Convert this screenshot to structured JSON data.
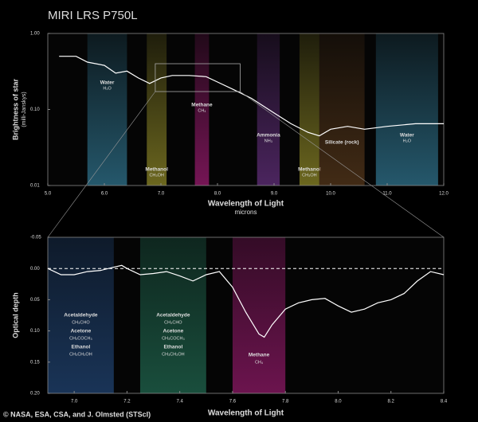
{
  "chart_data": [
    {
      "type": "line",
      "title": "MIRI LRS P750L",
      "xlabel": "Wavelength of Light",
      "xlabel_sub": "microns",
      "ylabel": "Brightness of star",
      "ylabel_sub": "(milli-Janskys)",
      "xlim": [
        5,
        12
      ],
      "xticks": [
        {
          "value": 5,
          "label": "5.0"
        },
        {
          "value": 6,
          "label": "6.0"
        },
        {
          "value": 7,
          "label": "7.0"
        },
        {
          "value": 8,
          "label": "8.0"
        },
        {
          "value": 9,
          "label": "9.0"
        },
        {
          "value": 10,
          "label": "10.0"
        },
        {
          "value": 11,
          "label": "11.0"
        },
        {
          "value": 12,
          "label": "12.0"
        }
      ],
      "ylim": [
        0.01,
        1
      ],
      "yscale": "log",
      "yticks": [
        0.01,
        {
          "value": 0.1,
          "label": "0.10"
        },
        {
          "value": 1,
          "label": "1.00"
        }
      ],
      "bands": [
        {
          "x0": 5.7,
          "x1": 6.4,
          "color": "#3a8fb0",
          "label_pos": "upper",
          "labels": [
            "Water",
            "H₂O"
          ]
        },
        {
          "x0": 6.75,
          "x1": 7.1,
          "color": "#b0a830",
          "label_pos": "bottom",
          "labels": [
            "Methanol",
            "CH₃OH"
          ]
        },
        {
          "x0": 7.6,
          "x1": 7.85,
          "color": "#c0208a",
          "label_pos": "center",
          "labels": [
            "Methane",
            "CH₄"
          ]
        },
        {
          "x0": 8.7,
          "x1": 9.1,
          "color": "#7a3a9a",
          "label_pos": "low",
          "labels": [
            "Ammonia",
            "NH₃"
          ]
        },
        {
          "x0": 9.45,
          "x1": 9.8,
          "color": "#b0a830",
          "label_pos": "bottom",
          "labels": [
            "Methanol",
            "CH₃OH"
          ]
        },
        {
          "x0": 9.8,
          "x1": 10.6,
          "color": "#6a4420",
          "label_pos": "lower",
          "labels": [
            "Silicate (rock)"
          ]
        },
        {
          "x0": 10.8,
          "x1": 11.9,
          "color": "#3a8fb0",
          "label_pos": "low",
          "labels": [
            "Water",
            "H₂O"
          ]
        }
      ],
      "series": [
        {
          "color": "#ffffff",
          "x": [
            5.2,
            5.5,
            5.7,
            6.0,
            6.2,
            6.4,
            6.6,
            6.8,
            7.0,
            7.2,
            7.5,
            7.8,
            8.0,
            8.3,
            8.6,
            9.0,
            9.3,
            9.6,
            9.8,
            10.0,
            10.3,
            10.6,
            11.0,
            11.5,
            12.0
          ],
          "values": [
            0.5,
            0.5,
            0.42,
            0.38,
            0.3,
            0.32,
            0.26,
            0.22,
            0.26,
            0.28,
            0.28,
            0.27,
            0.23,
            0.18,
            0.14,
            0.09,
            0.065,
            0.05,
            0.045,
            0.055,
            0.06,
            0.055,
            0.06,
            0.065,
            0.065
          ]
        }
      ]
    },
    {
      "type": "line",
      "xlabel": "Wavelength of Light",
      "ylabel": "Optical depth",
      "xlim": [
        6.9,
        8.4
      ],
      "xticks": [
        {
          "value": 7,
          "label": "7.0"
        },
        7.2,
        7.4,
        7.6,
        7.8,
        {
          "value": 8,
          "label": "8.0"
        },
        8.2,
        8.4
      ],
      "ylim": [
        -0.05,
        0.2
      ],
      "y_inverted": true,
      "yticks": [
        -0.05,
        {
          "value": 0,
          "label": "0.00"
        },
        0.05,
        {
          "value": 0.1,
          "label": "0.10"
        },
        0.15,
        {
          "value": 0.2,
          "label": "0.20"
        }
      ],
      "hline": 0,
      "bands": [
        {
          "x0": 6.9,
          "x1": 7.15,
          "color": "#2a5a9a",
          "label_pos": "center",
          "labels": [
            "Acetaldehyde",
            "CH₃CHO",
            "Acetone",
            "CH₃COCH₃",
            "Ethanol",
            "CH₃CH₂OH"
          ]
        },
        {
          "x0": 7.25,
          "x1": 7.5,
          "color": "#2a8a6a",
          "label_pos": "center",
          "labels": [
            "Acetaldehyde",
            "CH₃CHO",
            "Acetone",
            "CH₃COCH₃",
            "Ethanol",
            "CH₃CH₂OH"
          ]
        },
        {
          "x0": 7.6,
          "x1": 7.8,
          "color": "#c0208a",
          "label_pos": "low",
          "labels": [
            "Methane",
            "CH₄"
          ]
        }
      ],
      "series": [
        {
          "color": "#ffffff",
          "x": [
            6.9,
            6.95,
            7.0,
            7.05,
            7.1,
            7.15,
            7.18,
            7.2,
            7.25,
            7.3,
            7.35,
            7.4,
            7.45,
            7.5,
            7.55,
            7.6,
            7.65,
            7.7,
            7.72,
            7.75,
            7.8,
            7.85,
            7.9,
            7.95,
            8.0,
            8.05,
            8.1,
            8.15,
            8.2,
            8.25,
            8.3,
            8.35,
            8.4
          ],
          "values": [
            0.0,
            0.01,
            0.01,
            0.005,
            0.003,
            -0.002,
            -0.005,
            0.0,
            0.01,
            0.008,
            0.005,
            0.012,
            0.02,
            0.01,
            0.005,
            0.03,
            0.07,
            0.105,
            0.11,
            0.09,
            0.065,
            0.055,
            0.05,
            0.048,
            0.06,
            0.07,
            0.065,
            0.055,
            0.05,
            0.04,
            0.02,
            0.005,
            0.01
          ]
        }
      ]
    }
  ],
  "credit": "© NASA, ESA, CSA, and J. Olmsted (STScI)"
}
